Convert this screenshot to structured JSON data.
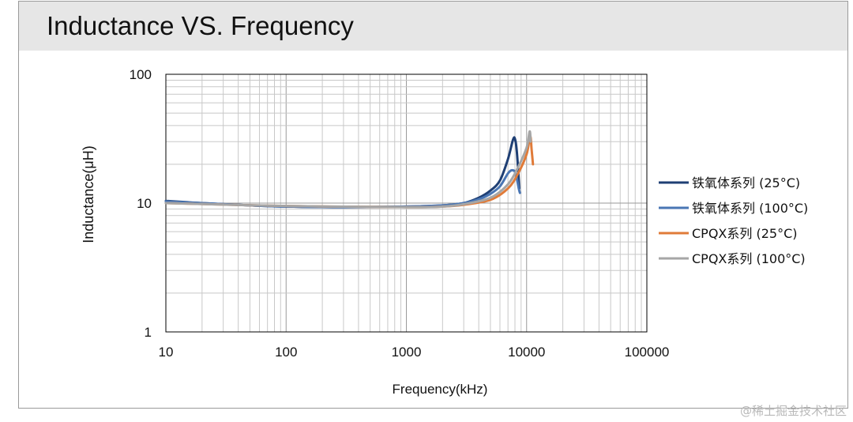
{
  "page": {
    "title": "Inductance VS. Frequency",
    "watermark": "@稀土掘金技术社区"
  },
  "chart_data": {
    "type": "line",
    "title": "Inductance VS. Frequency",
    "xlabel": "Frequency(kHz)",
    "ylabel": "Inductance(μH)",
    "x_scale": "log",
    "y_scale": "log",
    "xlim": [
      10,
      100000
    ],
    "ylim": [
      1,
      100
    ],
    "x_ticks": [
      10,
      100,
      1000,
      10000,
      100000
    ],
    "x_tick_labels": [
      "10",
      "100",
      "1000",
      "10000",
      "100000"
    ],
    "y_ticks": [
      1,
      10,
      100
    ],
    "y_tick_labels": [
      "1",
      "10",
      "100"
    ],
    "grid": true,
    "legend_position": "right",
    "series": [
      {
        "name": "铁氧体系列 (25°C)",
        "color": "#1f3f74",
        "points": [
          [
            10,
            10.4
          ],
          [
            20,
            10.0
          ],
          [
            50,
            9.6
          ],
          [
            100,
            9.4
          ],
          [
            300,
            9.3
          ],
          [
            1000,
            9.4
          ],
          [
            2000,
            9.6
          ],
          [
            3000,
            10.0
          ],
          [
            4000,
            11.0
          ],
          [
            5000,
            12.5
          ],
          [
            6000,
            15.0
          ],
          [
            7000,
            22.0
          ],
          [
            7700,
            31.0
          ],
          [
            8000,
            31.5
          ],
          [
            8300,
            25.0
          ],
          [
            8700,
            13.0
          ]
        ]
      },
      {
        "name": "铁氧体系列 (100°C)",
        "color": "#4a76b4",
        "points": [
          [
            10,
            10.3
          ],
          [
            20,
            10.0
          ],
          [
            50,
            9.6
          ],
          [
            100,
            9.4
          ],
          [
            300,
            9.3
          ],
          [
            1000,
            9.4
          ],
          [
            2000,
            9.6
          ],
          [
            3000,
            10.0
          ],
          [
            4000,
            10.7
          ],
          [
            5000,
            11.8
          ],
          [
            6000,
            13.5
          ],
          [
            7000,
            17.0
          ],
          [
            7600,
            18.0
          ],
          [
            8100,
            17.0
          ],
          [
            8600,
            13.0
          ],
          [
            8800,
            12.0
          ]
        ]
      },
      {
        "name": "CPQX系列 (25°C)",
        "color": "#e07b39",
        "points": [
          [
            10,
            10.0
          ],
          [
            100,
            9.5
          ],
          [
            1000,
            9.3
          ],
          [
            2000,
            9.4
          ],
          [
            3000,
            9.7
          ],
          [
            5000,
            10.6
          ],
          [
            7000,
            13.0
          ],
          [
            8500,
            17.0
          ],
          [
            10000,
            24.0
          ],
          [
            10700,
            33.0
          ],
          [
            11000,
            26.0
          ],
          [
            11300,
            20.0
          ]
        ]
      },
      {
        "name": "CPQX系列 (100°C)",
        "color": "#a6a6a6",
        "points": [
          [
            10,
            10.0
          ],
          [
            100,
            9.5
          ],
          [
            1000,
            9.3
          ],
          [
            2000,
            9.4
          ],
          [
            3000,
            9.8
          ],
          [
            5000,
            11.0
          ],
          [
            7000,
            14.0
          ],
          [
            8500,
            19.0
          ],
          [
            10000,
            27.0
          ],
          [
            10600,
            36.0
          ],
          [
            10800,
            30.0
          ]
        ]
      }
    ]
  }
}
